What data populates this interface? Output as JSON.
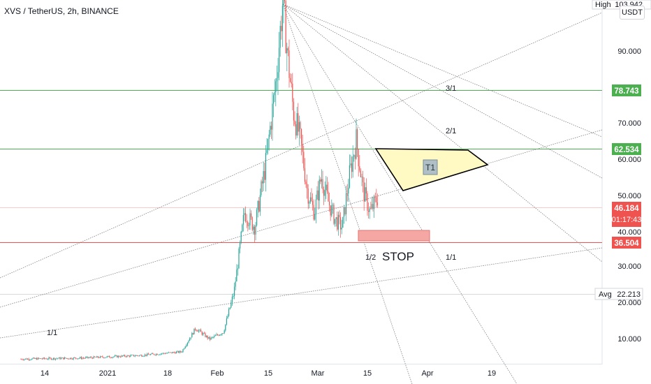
{
  "header": {
    "symbol_title": "XVS / TetherUS, 2h, BINANCE",
    "currency": "USDT"
  },
  "chart_data": {
    "type": "candlestick",
    "title": "XVS / TetherUS, 2h, BINANCE",
    "xlabel": "",
    "ylabel": "",
    "ylim": [
      0,
      104
    ],
    "x_ticks": [
      "14",
      "2021",
      "18",
      "Feb",
      "15",
      "Mar",
      "15",
      "Apr",
      "19"
    ],
    "y_ticks": [
      {
        "value": 90,
        "label": "90.000"
      },
      {
        "value": 70,
        "label": "70.000"
      },
      {
        "value": 60,
        "label": "60.000"
      },
      {
        "value": 50,
        "label": "50.000"
      },
      {
        "value": 40,
        "label": "40.000"
      },
      {
        "value": 30,
        "label": "30.000"
      },
      {
        "value": 20,
        "label": "20.000"
      },
      {
        "value": 10,
        "label": "10.000"
      }
    ],
    "price_labels": [
      {
        "name": "High",
        "value": 103.942,
        "label": "103.942",
        "color": "#ffffff",
        "text_color": "#131722"
      },
      {
        "name": "resistance-1",
        "value": 78.743,
        "label": "78.743",
        "color": "#4caf50",
        "text_color": "#ffffff"
      },
      {
        "name": "resistance-2",
        "value": 62.534,
        "label": "62.534",
        "color": "#4caf50",
        "text_color": "#ffffff"
      },
      {
        "name": "last-price",
        "value": 46.184,
        "label": "46.184",
        "countdown": "01:17:43",
        "color": "#ef5350",
        "text_color": "#ffffff"
      },
      {
        "name": "support",
        "value": 36.504,
        "label": "36.504",
        "color": "#ef5350",
        "text_color": "#ffffff"
      },
      {
        "name": "Avg",
        "value": 22.213,
        "label": "22.213",
        "color": "#ffffff",
        "text_color": "#131722"
      }
    ],
    "horizontal_lines": [
      {
        "value": 78.743,
        "color": "#4caf50"
      },
      {
        "value": 62.534,
        "color": "#4caf50"
      },
      {
        "value": 46.184,
        "color": "#f7c9c9"
      },
      {
        "value": 36.504,
        "color": "#ef5350"
      },
      {
        "value": 22.213,
        "color": "#d0d0d0"
      }
    ],
    "fan_ratio_labels": [
      "3/1",
      "2/1",
      "1/1",
      "1/2",
      "1/1"
    ],
    "target_label": "T1",
    "stop_label": "STOP",
    "colors": {
      "up": "#26a69a",
      "down": "#ef5350",
      "target_fill": "#fff9c4",
      "stop_fill": "#f4a7a3"
    }
  }
}
